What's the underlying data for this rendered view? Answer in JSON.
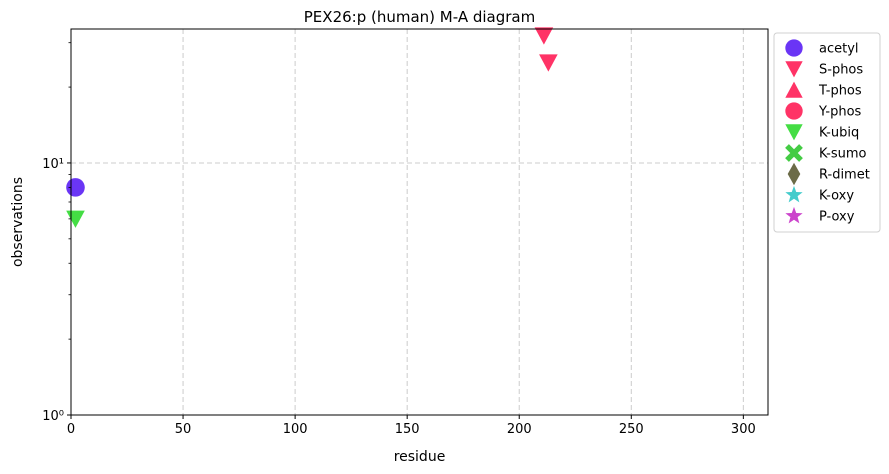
{
  "chart_data": {
    "type": "scatter",
    "title": "PEX26:p (human) M-A diagram",
    "xlabel": "residue",
    "ylabel": "observations",
    "x_scale": "linear",
    "y_scale": "log",
    "xlim": [
      0,
      311
    ],
    "ylim": [
      1,
      34
    ],
    "x_ticks": [
      0,
      50,
      100,
      150,
      200,
      250,
      300
    ],
    "x_tick_labels": [
      "0",
      "50",
      "100",
      "150",
      "200",
      "250",
      "300"
    ],
    "y_ticks": [
      1,
      10
    ],
    "y_tick_labels": [
      "10⁰",
      "10¹"
    ],
    "grid": true,
    "grid_style": "dashed",
    "legend_position": "outside-right",
    "series": [
      {
        "name": "acetyl",
        "marker": "circle",
        "color": "#6a35f5",
        "points": [
          {
            "x": 2,
            "y": 8
          }
        ]
      },
      {
        "name": "S-phos",
        "marker": "triangle-down",
        "color": "#ff3366",
        "points": [
          {
            "x": 211,
            "y": 32
          },
          {
            "x": 213,
            "y": 25
          }
        ]
      },
      {
        "name": "T-phos",
        "marker": "triangle-up",
        "color": "#ff3366",
        "points": []
      },
      {
        "name": "Y-phos",
        "marker": "circle",
        "color": "#ff3366",
        "points": []
      },
      {
        "name": "K-ubiq",
        "marker": "triangle-down",
        "color": "#44dd44",
        "points": [
          {
            "x": 2,
            "y": 6
          }
        ]
      },
      {
        "name": "K-sumo",
        "marker": "x-cross",
        "color": "#44cc44",
        "points": []
      },
      {
        "name": "R-dimet",
        "marker": "diamond",
        "color": "#6b6b47",
        "points": []
      },
      {
        "name": "K-oxy",
        "marker": "star",
        "color": "#44cccc",
        "points": []
      },
      {
        "name": "P-oxy",
        "marker": "star",
        "color": "#cc44cc",
        "points": []
      }
    ]
  }
}
